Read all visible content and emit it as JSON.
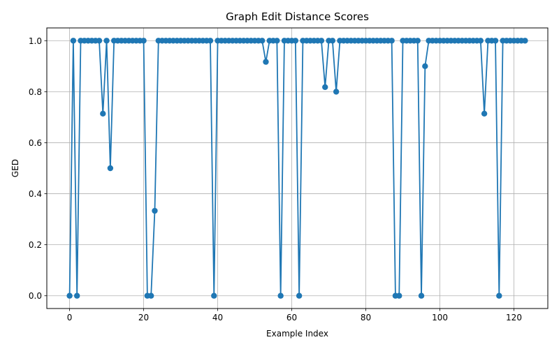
{
  "chart_data": {
    "type": "line",
    "title": "Graph Edit Distance Scores",
    "xlabel": "Example Index",
    "ylabel": "GED",
    "xlim": [
      -6.15,
      129.15
    ],
    "ylim": [
      -0.05,
      1.05
    ],
    "xticks": [
      0,
      20,
      40,
      60,
      80,
      100,
      120
    ],
    "yticks": [
      0.0,
      0.2,
      0.4,
      0.6,
      0.8,
      1.0
    ],
    "ytick_labels": [
      "0.0",
      "0.2",
      "0.4",
      "0.6",
      "0.8",
      "1.0"
    ],
    "grid": true,
    "marker": "circle",
    "color": "#1f77b4",
    "x": [
      0,
      1,
      2,
      3,
      4,
      5,
      6,
      7,
      8,
      9,
      10,
      11,
      12,
      13,
      14,
      15,
      16,
      17,
      18,
      19,
      20,
      21,
      22,
      23,
      24,
      25,
      26,
      27,
      28,
      29,
      30,
      31,
      32,
      33,
      34,
      35,
      36,
      37,
      38,
      39,
      40,
      41,
      42,
      43,
      44,
      45,
      46,
      47,
      48,
      49,
      50,
      51,
      52,
      53,
      54,
      55,
      56,
      57,
      58,
      59,
      60,
      61,
      62,
      63,
      64,
      65,
      66,
      67,
      68,
      69,
      70,
      71,
      72,
      73,
      74,
      75,
      76,
      77,
      78,
      79,
      80,
      81,
      82,
      83,
      84,
      85,
      86,
      87,
      88,
      89,
      90,
      91,
      92,
      93,
      94,
      95,
      96,
      97,
      98,
      99,
      100,
      101,
      102,
      103,
      104,
      105,
      106,
      107,
      108,
      109,
      110,
      111,
      112,
      113,
      114,
      115,
      116,
      117,
      118,
      119,
      120,
      121,
      122,
      123
    ],
    "y": [
      0.0,
      1.0,
      0.0,
      1.0,
      1.0,
      1.0,
      1.0,
      1.0,
      1.0,
      0.714,
      1.0,
      0.5,
      1.0,
      1.0,
      1.0,
      1.0,
      1.0,
      1.0,
      1.0,
      1.0,
      1.0,
      0.0,
      0.0,
      0.333,
      1.0,
      1.0,
      1.0,
      1.0,
      1.0,
      1.0,
      1.0,
      1.0,
      1.0,
      1.0,
      1.0,
      1.0,
      1.0,
      1.0,
      1.0,
      0.0,
      1.0,
      1.0,
      1.0,
      1.0,
      1.0,
      1.0,
      1.0,
      1.0,
      1.0,
      1.0,
      1.0,
      1.0,
      1.0,
      0.917,
      1.0,
      1.0,
      1.0,
      0.0,
      1.0,
      1.0,
      1.0,
      1.0,
      0.0,
      1.0,
      1.0,
      1.0,
      1.0,
      1.0,
      1.0,
      0.818,
      1.0,
      1.0,
      0.8,
      1.0,
      1.0,
      1.0,
      1.0,
      1.0,
      1.0,
      1.0,
      1.0,
      1.0,
      1.0,
      1.0,
      1.0,
      1.0,
      1.0,
      1.0,
      0.0,
      0.0,
      1.0,
      1.0,
      1.0,
      1.0,
      1.0,
      0.0,
      0.9,
      1.0,
      1.0,
      1.0,
      1.0,
      1.0,
      1.0,
      1.0,
      1.0,
      1.0,
      1.0,
      1.0,
      1.0,
      1.0,
      1.0,
      1.0,
      0.714,
      1.0,
      1.0,
      1.0,
      0.0,
      1.0,
      1.0,
      1.0,
      1.0,
      1.0,
      1.0,
      1.0
    ]
  }
}
